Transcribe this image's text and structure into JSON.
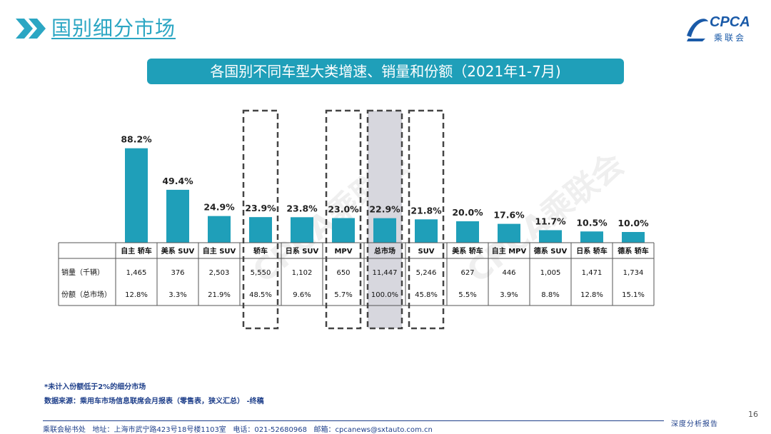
{
  "header": {
    "title": "国别细分市场"
  },
  "logo": {
    "name": "CPCA",
    "sub": "乘联会"
  },
  "banner": {
    "title": "各国别不同车型大类增速、销量和份额（2021年1-7月)"
  },
  "watermark": {
    "text": "CPCA乘联会"
  },
  "chart_data": {
    "type": "bar",
    "title": "各国别不同车型大类增速、销量和份额（2021年1-7月)",
    "categories": [
      "自主 轿车",
      "美系 SUV",
      "自主 SUV",
      "轿车",
      "日系 SUV",
      "MPV",
      "总市场",
      "SUV",
      "美系 轿车",
      "自主 MPV",
      "德系 SUV",
      "日系 轿车",
      "德系 轿车"
    ],
    "growth": [
      88.2,
      49.4,
      24.9,
      23.9,
      23.8,
      23.0,
      22.9,
      21.8,
      20.0,
      17.6,
      11.7,
      10.5,
      10.0
    ],
    "growth_labels": [
      "88.2%",
      "49.4%",
      "24.9%",
      "23.9%",
      "23.8%",
      "23.0%",
      "22.9%",
      "21.8%",
      "20.0%",
      "17.6%",
      "11.7%",
      "10.5%",
      "10.0%"
    ],
    "rows": [
      {
        "label": "销量（千辆）",
        "values": [
          "1,465",
          "376",
          "2,503",
          "5,550",
          "1,102",
          "650",
          "11,447",
          "5,246",
          "627",
          "446",
          "1,005",
          "1,471",
          "1,734"
        ]
      },
      {
        "label": "份额（总市场）",
        "values": [
          "12.8%",
          "3.3%",
          "21.9%",
          "48.5%",
          "9.6%",
          "5.7%",
          "100.0%",
          "45.8%",
          "5.5%",
          "3.9%",
          "8.8%",
          "12.8%",
          "15.1%"
        ]
      }
    ],
    "highlighted": [
      "轿车",
      "MPV",
      "总市场",
      "SUV"
    ],
    "ylim": [
      0,
      100
    ],
    "bar_color": "#1f9fb9",
    "total_bg": "#d7d7de"
  },
  "notes": {
    "line1": "*未计入份额低于2%的细分市场",
    "line2": "数据来源：乘用车市场信息联席会月报表（零售表，狭义汇总） -终稿"
  },
  "footer": {
    "org": "乘联会秘书处",
    "address": "地址：上海市武宁路423号18号楼1103室",
    "phone": "电话：021-52680968",
    "email": "邮箱：cpcanews@sxtauto.com.cn",
    "page": "16",
    "tagline": "深度分析报告"
  }
}
